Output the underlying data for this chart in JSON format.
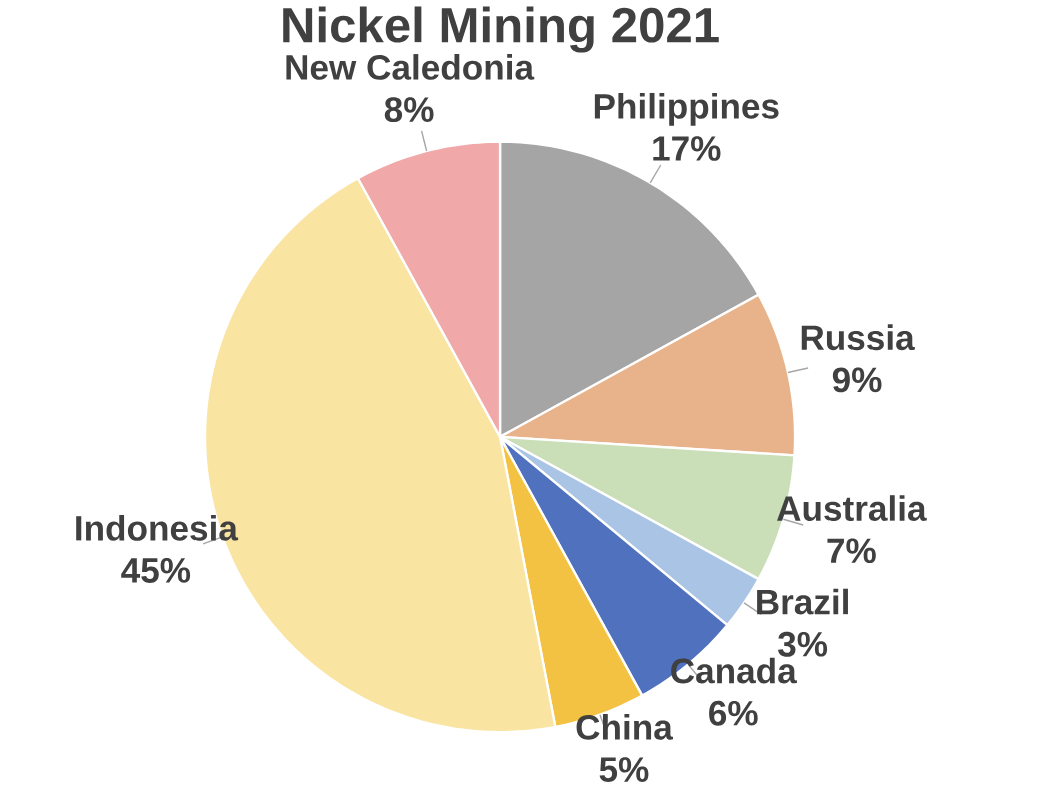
{
  "chart_data": {
    "type": "pie",
    "title": "Nickel Mining 2021",
    "categories": [
      "Philippines",
      "Russia",
      "Australia",
      "Brazil",
      "Canada",
      "China",
      "Indonesia",
      "New Caledonia"
    ],
    "values": [
      17,
      9,
      7,
      3,
      6,
      5,
      45,
      8
    ],
    "colors": [
      "#a5a5a5",
      "#e8b38a",
      "#cadfb8",
      "#a9c4e4",
      "#4f71be",
      "#f4c243",
      "#f9e4a2",
      "#f0a8a8"
    ],
    "value_labels": [
      "17%",
      "9%",
      "7%",
      "3%",
      "6%",
      "5%",
      "45%",
      "8%"
    ]
  }
}
